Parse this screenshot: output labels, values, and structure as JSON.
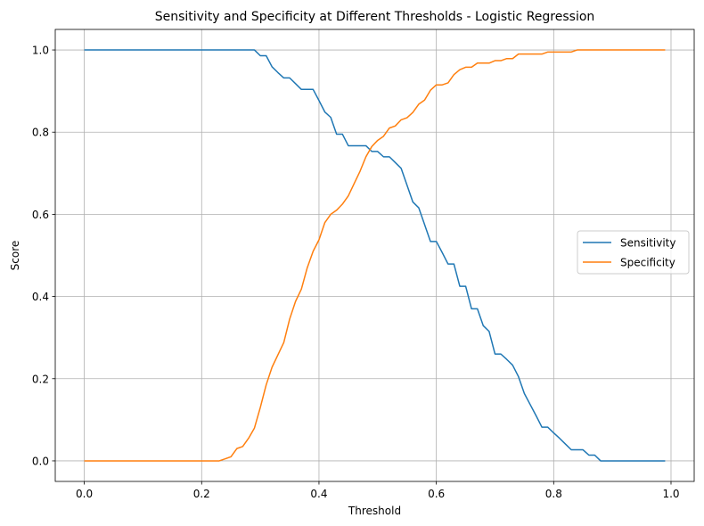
{
  "chart_data": {
    "type": "line",
    "title": "Sensitivity and Specificity at Different Thresholds - Logistic Regression",
    "xlabel": "Threshold",
    "ylabel": "Score",
    "xlim": [
      -0.0495,
      1.0395
    ],
    "ylim": [
      -0.05,
      1.05
    ],
    "xticks": [
      "0.0",
      "0.2",
      "0.4",
      "0.6",
      "0.8",
      "1.0"
    ],
    "xtick_values": [
      0.0,
      0.2,
      0.4,
      0.6,
      0.8,
      1.0
    ],
    "yticks": [
      "0.0",
      "0.2",
      "0.4",
      "0.6",
      "0.8",
      "1.0"
    ],
    "ytick_values": [
      0.0,
      0.2,
      0.4,
      0.6,
      0.8,
      1.0
    ],
    "grid": true,
    "legend_position": "center-right",
    "x": [
      0.0,
      0.01,
      0.02,
      0.03,
      0.04,
      0.05,
      0.06,
      0.07,
      0.08,
      0.09,
      0.1,
      0.11,
      0.12,
      0.13,
      0.14,
      0.15,
      0.16,
      0.17,
      0.18,
      0.19,
      0.2,
      0.21,
      0.22,
      0.23,
      0.24,
      0.25,
      0.26,
      0.27,
      0.28,
      0.29,
      0.3,
      0.31,
      0.32,
      0.33,
      0.34,
      0.35,
      0.36,
      0.37,
      0.38,
      0.39,
      0.4,
      0.41,
      0.42,
      0.43,
      0.44,
      0.45,
      0.46,
      0.47,
      0.48,
      0.49,
      0.5,
      0.51,
      0.52,
      0.53,
      0.54,
      0.55,
      0.56,
      0.57,
      0.58,
      0.59,
      0.6,
      0.61,
      0.62,
      0.63,
      0.64,
      0.65,
      0.66,
      0.67,
      0.68,
      0.69,
      0.7,
      0.71,
      0.72,
      0.73,
      0.74,
      0.75,
      0.76,
      0.77,
      0.78,
      0.79,
      0.8,
      0.81,
      0.82,
      0.83,
      0.84,
      0.85,
      0.86,
      0.87,
      0.88,
      0.89,
      0.9,
      0.91,
      0.92,
      0.93,
      0.94,
      0.95,
      0.96,
      0.97,
      0.98,
      0.99
    ],
    "series": [
      {
        "name": "Sensitivity",
        "color": "#1f77b4",
        "values": [
          1,
          1,
          1,
          1,
          1,
          1,
          1,
          1,
          1,
          1,
          1,
          1,
          1,
          1,
          1,
          1,
          1,
          1,
          1,
          1,
          1,
          1,
          1,
          1,
          1,
          1,
          1,
          1,
          1,
          1,
          0.986,
          0.986,
          0.959,
          0.945,
          0.932,
          0.932,
          0.918,
          0.904,
          0.904,
          0.904,
          0.877,
          0.849,
          0.836,
          0.795,
          0.795,
          0.767,
          0.767,
          0.767,
          0.767,
          0.753,
          0.753,
          0.74,
          0.74,
          0.726,
          0.712,
          0.671,
          0.63,
          0.616,
          0.575,
          0.534,
          0.534,
          0.507,
          0.479,
          0.479,
          0.425,
          0.425,
          0.37,
          0.37,
          0.329,
          0.315,
          0.26,
          0.26,
          0.247,
          0.233,
          0.205,
          0.164,
          0.137,
          0.11,
          0.082,
          0.082,
          0.068,
          0.055,
          0.041,
          0.027,
          0.027,
          0.027,
          0.014,
          0.014,
          0,
          0,
          0,
          0,
          0,
          0,
          0,
          0,
          0,
          0,
          0,
          0
        ]
      },
      {
        "name": "Specificity",
        "color": "#ff7f0e",
        "values": [
          0,
          0,
          0,
          0,
          0,
          0,
          0,
          0,
          0,
          0,
          0,
          0,
          0,
          0,
          0,
          0,
          0,
          0,
          0,
          0,
          0,
          0,
          0,
          0,
          0.005,
          0.01,
          0.03,
          0.035,
          0.055,
          0.08,
          0.13,
          0.185,
          0.228,
          0.258,
          0.288,
          0.345,
          0.388,
          0.418,
          0.47,
          0.51,
          0.538,
          0.58,
          0.6,
          0.61,
          0.625,
          0.645,
          0.675,
          0.705,
          0.74,
          0.765,
          0.78,
          0.79,
          0.81,
          0.815,
          0.83,
          0.835,
          0.848,
          0.868,
          0.878,
          0.902,
          0.915,
          0.915,
          0.92,
          0.94,
          0.952,
          0.958,
          0.958,
          0.968,
          0.968,
          0.968,
          0.974,
          0.974,
          0.979,
          0.979,
          0.99,
          0.99,
          0.99,
          0.99,
          0.99,
          0.995,
          0.995,
          0.995,
          0.995,
          0.995,
          1,
          1,
          1,
          1,
          1,
          1,
          1,
          1,
          1,
          1,
          1,
          1,
          1,
          1,
          1,
          1
        ]
      }
    ]
  }
}
